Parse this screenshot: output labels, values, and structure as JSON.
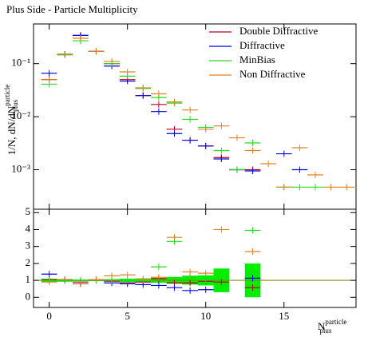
{
  "chart_data": [
    {
      "type": "scatter",
      "title": "Plus Side - Particle Multiplicity",
      "ylabel": {
        "base": "1/N, dN/dN",
        "sup": "particle",
        "sub": "plus"
      },
      "log_y": true,
      "legend": "upper right",
      "x": [
        0,
        1,
        2,
        3,
        4,
        5,
        6,
        7,
        8,
        9,
        10,
        11,
        12,
        13,
        14,
        15,
        16,
        17,
        18,
        19
      ],
      "xlim": [
        -1,
        19.6
      ],
      "ylim": [
        0.00018,
        0.56
      ],
      "yticks": [
        {
          "value": 0.001,
          "label": "10⁻³"
        },
        {
          "value": 0.01,
          "label": "10⁻²"
        },
        {
          "value": 0.1,
          "label": "10⁻¹"
        }
      ],
      "series": [
        {
          "name": "Double Diffractive",
          "color": "#c00020",
          "values": [
            0.05,
            0.15,
            0.34,
            0.17,
            0.1,
            0.05,
            0.025,
            0.017,
            0.0058,
            0.0036,
            0.0028,
            0.0017,
            0.001,
            0.001,
            null,
            null,
            null,
            null,
            null,
            null
          ]
        },
        {
          "name": "Diffractive",
          "color": "#0000e0",
          "values": [
            0.066,
            0.15,
            0.34,
            0.17,
            0.09,
            0.047,
            0.025,
            0.0125,
            0.0048,
            0.0036,
            0.0028,
            0.0016,
            0.001,
            0.00095,
            null,
            0.002,
            0.001,
            null,
            null,
            null
          ]
        },
        {
          "name": "MinBias",
          "color": "#22dd22",
          "values": [
            0.041,
            0.146,
            0.27,
            0.17,
            0.1,
            0.058,
            0.034,
            0.023,
            0.018,
            0.0089,
            0.0063,
            0.0023,
            0.001,
            0.0032,
            null,
            0.00047,
            0.00047,
            0.00047,
            null,
            null
          ]
        },
        {
          "name": "Non Diffractive",
          "color": "#e08020",
          "values": [
            0.05,
            0.15,
            0.3,
            0.17,
            0.11,
            0.07,
            0.035,
            0.027,
            0.019,
            0.0134,
            0.0058,
            0.0067,
            0.004,
            0.0023,
            0.0013,
            0.00047,
            0.0026,
            0.0008,
            0.00047,
            0.00047
          ]
        }
      ]
    },
    {
      "type": "scatter",
      "xlabel": {
        "base": "N",
        "sup": "particle",
        "sub": "plus"
      },
      "x": [
        0,
        1,
        2,
        3,
        4,
        5,
        6,
        7,
        8,
        9,
        10,
        11,
        12,
        13,
        14,
        15,
        16,
        17,
        18,
        19
      ],
      "xlim": [
        -1,
        19.6
      ],
      "xticks": [
        0,
        5,
        10,
        15
      ],
      "ylim": [
        -0.6,
        5.2
      ],
      "yticks": [
        0,
        1,
        2,
        3,
        4,
        5
      ],
      "reference": 1,
      "band_color": "#00ee00",
      "band_low": [
        0.9,
        0.92,
        0.95,
        0.95,
        0.93,
        0.9,
        0.88,
        0.85,
        0.8,
        0.75,
        0.7,
        0.3,
        null,
        0.0,
        null,
        null,
        null,
        null,
        null,
        null
      ],
      "band_high": [
        1.1,
        1.08,
        1.05,
        1.05,
        1.07,
        1.1,
        1.12,
        1.15,
        1.2,
        1.25,
        1.3,
        1.7,
        null,
        2.0,
        null,
        null,
        null,
        null,
        null,
        null
      ],
      "series": [
        {
          "color": "#c00020",
          "values": [
            1.04,
            1.0,
            0.9,
            1.04,
            0.95,
            0.85,
            0.9,
            1.1,
            0.85,
            0.85,
            0.95,
            0.9,
            null,
            0.57,
            null,
            null,
            null,
            null,
            null,
            null
          ]
        },
        {
          "color": "#0000e0",
          "values": [
            1.37,
            1.04,
            0.8,
            1.0,
            0.85,
            0.8,
            0.75,
            0.7,
            0.57,
            0.4,
            0.45,
            null,
            null,
            1.13,
            null,
            null,
            null,
            null,
            null,
            null
          ]
        },
        {
          "color": "#22dd22",
          "values": [
            1.0,
            1.0,
            1.0,
            1.0,
            1.0,
            1.0,
            1.0,
            1.8,
            3.3,
            1.25,
            1.0,
            null,
            null,
            3.95,
            null,
            null,
            null,
            null,
            null,
            null
          ]
        },
        {
          "color": "#e08020",
          "values": [
            0.9,
            1.04,
            0.8,
            1.04,
            1.27,
            1.32,
            1.08,
            1.18,
            3.54,
            1.5,
            1.42,
            4.0,
            null,
            2.7,
            null,
            null,
            null,
            null,
            null,
            null
          ]
        }
      ]
    }
  ]
}
